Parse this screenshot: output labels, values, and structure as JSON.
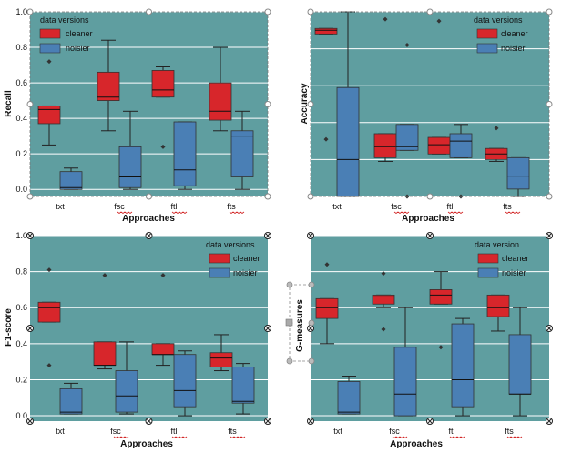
{
  "colors": {
    "plot_bg": "#5f9ea0",
    "cleaner": "#d7262b",
    "noisier": "#4a7fb5",
    "median": "#111111",
    "grid": "#ffffff",
    "handle": "#888888"
  },
  "chart_data": [
    {
      "type": "box",
      "ylabel": "Recall",
      "xlabel": "Approaches",
      "categories": [
        "txt",
        "fsc",
        "ftl",
        "fts"
      ],
      "ylim": [
        -0.04,
        1.0
      ],
      "yticks": [
        "0.0",
        "0.2",
        "0.4",
        "0.6",
        "0.8",
        "1.0"
      ],
      "legend": {
        "title": "data versions",
        "placement": "top-left",
        "labels": [
          "cleaner",
          "noisier"
        ]
      },
      "series": [
        {
          "name": "cleaner",
          "boxes": [
            {
              "whislo": 0.25,
              "q1": 0.37,
              "med": 0.45,
              "q3": 0.47,
              "whishi": 0.47,
              "fliers": [
                0.72
              ]
            },
            {
              "whislo": 0.33,
              "q1": 0.5,
              "med": 0.52,
              "q3": 0.66,
              "whishi": 0.84,
              "fliers": []
            },
            {
              "whislo": 0.52,
              "q1": 0.52,
              "med": 0.56,
              "q3": 0.67,
              "whishi": 0.69,
              "fliers": [
                0.24
              ]
            },
            {
              "whislo": 0.33,
              "q1": 0.39,
              "med": 0.44,
              "q3": 0.6,
              "whishi": 0.8,
              "fliers": []
            }
          ]
        },
        {
          "name": "noisier",
          "boxes": [
            {
              "whislo": 0.0,
              "q1": 0.0,
              "med": 0.01,
              "q3": 0.1,
              "whishi": 0.12,
              "fliers": []
            },
            {
              "whislo": 0.0,
              "q1": 0.01,
              "med": 0.07,
              "q3": 0.24,
              "whishi": 0.44,
              "fliers": []
            },
            {
              "whislo": 0.0,
              "q1": 0.02,
              "med": 0.11,
              "q3": 0.38,
              "whishi": 0.38,
              "fliers": []
            },
            {
              "whislo": 0.0,
              "q1": 0.07,
              "med": 0.3,
              "q3": 0.33,
              "whishi": 0.44,
              "fliers": []
            }
          ]
        }
      ]
    },
    {
      "type": "box",
      "ylabel": "Accuracy",
      "xlabel": "Approaches",
      "categories": [
        "txt",
        "fsc",
        "ftl",
        "fts"
      ],
      "ylim": [
        0.0,
        1.0
      ],
      "yticks": [],
      "legend": {
        "title": "data versions",
        "placement": "top-right",
        "labels": [
          "cleaner",
          "noisier"
        ]
      },
      "series": [
        {
          "name": "cleaner",
          "boxes": [
            {
              "whislo": 0.88,
              "q1": 0.88,
              "med": 0.9,
              "q3": 0.91,
              "whishi": 0.91,
              "fliers": [
                0.31
              ]
            },
            {
              "whislo": 0.19,
              "q1": 0.21,
              "med": 0.27,
              "q3": 0.34,
              "whishi": 0.34,
              "fliers": [
                0.96
              ]
            },
            {
              "whislo": 0.23,
              "q1": 0.23,
              "med": 0.28,
              "q3": 0.32,
              "whishi": 0.32,
              "fliers": [
                0.95
              ]
            },
            {
              "whislo": 0.19,
              "q1": 0.2,
              "med": 0.23,
              "q3": 0.26,
              "whishi": 0.26,
              "fliers": [
                0.37
              ]
            }
          ]
        },
        {
          "name": "noisier",
          "boxes": [
            {
              "whislo": 0.0,
              "q1": 0.0,
              "med": 0.2,
              "q3": 0.59,
              "whishi": 1.0,
              "fliers": []
            },
            {
              "whislo": 0.25,
              "q1": 0.25,
              "med": 0.27,
              "q3": 0.39,
              "whishi": 0.39,
              "fliers": [
                0.0,
                0.82
              ]
            },
            {
              "whislo": 0.21,
              "q1": 0.21,
              "med": 0.3,
              "q3": 0.34,
              "whishi": 0.39,
              "fliers": [
                0.0
              ]
            },
            {
              "whislo": 0.0,
              "q1": 0.04,
              "med": 0.11,
              "q3": 0.21,
              "whishi": 0.21,
              "fliers": []
            }
          ]
        }
      ]
    },
    {
      "type": "box",
      "ylabel": "F1-score",
      "xlabel": "Approaches",
      "categories": [
        "txt",
        "fsc",
        "ftl",
        "fts"
      ],
      "ylim": [
        -0.03,
        1.0
      ],
      "yticks": [
        "0.0",
        "0.2",
        "0.4",
        "0.6",
        "0.8",
        "1.0"
      ],
      "legend": {
        "title": "data versions",
        "placement": "top-right",
        "labels": [
          "cleaner",
          "noisier"
        ]
      },
      "series": [
        {
          "name": "cleaner",
          "boxes": [
            {
              "whislo": 0.52,
              "q1": 0.52,
              "med": 0.6,
              "q3": 0.63,
              "whishi": 0.63,
              "fliers": [
                0.81,
                0.28
              ]
            },
            {
              "whislo": 0.26,
              "q1": 0.28,
              "med": 0.28,
              "q3": 0.41,
              "whishi": 0.41,
              "fliers": [
                0.78
              ]
            },
            {
              "whislo": 0.28,
              "q1": 0.34,
              "med": 0.34,
              "q3": 0.4,
              "whishi": 0.4,
              "fliers": [
                0.78
              ]
            },
            {
              "whislo": 0.25,
              "q1": 0.27,
              "med": 0.32,
              "q3": 0.35,
              "whishi": 0.45,
              "fliers": []
            }
          ]
        },
        {
          "name": "noisier",
          "boxes": [
            {
              "whislo": 0.01,
              "q1": 0.01,
              "med": 0.02,
              "q3": 0.15,
              "whishi": 0.18,
              "fliers": []
            },
            {
              "whislo": 0.01,
              "q1": 0.02,
              "med": 0.11,
              "q3": 0.25,
              "whishi": 0.41,
              "fliers": []
            },
            {
              "whislo": 0.0,
              "q1": 0.05,
              "med": 0.14,
              "q3": 0.34,
              "whishi": 0.36,
              "fliers": []
            },
            {
              "whislo": 0.01,
              "q1": 0.07,
              "med": 0.08,
              "q3": 0.27,
              "whishi": 0.29,
              "fliers": []
            }
          ]
        }
      ]
    },
    {
      "type": "box",
      "ylabel": "G-measures",
      "xlabel": "Approaches",
      "categories": [
        "txt",
        "fsc",
        "ftl",
        "fts"
      ],
      "ylim": [
        -0.03,
        1.0
      ],
      "yticks": [],
      "legend": {
        "title": "data version",
        "placement": "top-right",
        "labels": [
          "cleaner",
          "noisier"
        ]
      },
      "series": [
        {
          "name": "cleaner",
          "boxes": [
            {
              "whislo": 0.4,
              "q1": 0.54,
              "med": 0.6,
              "q3": 0.65,
              "whishi": 0.65,
              "fliers": [
                0.84
              ]
            },
            {
              "whislo": 0.6,
              "q1": 0.62,
              "med": 0.66,
              "q3": 0.67,
              "whishi": 0.67,
              "fliers": [
                0.79,
                0.48
              ]
            },
            {
              "whislo": 0.62,
              "q1": 0.62,
              "med": 0.67,
              "q3": 0.7,
              "whishi": 0.8,
              "fliers": [
                0.38
              ]
            },
            {
              "whislo": 0.47,
              "q1": 0.55,
              "med": 0.6,
              "q3": 0.67,
              "whishi": 0.67,
              "fliers": []
            }
          ]
        },
        {
          "name": "noisier",
          "boxes": [
            {
              "whislo": 0.01,
              "q1": 0.01,
              "med": 0.02,
              "q3": 0.19,
              "whishi": 0.22,
              "fliers": []
            },
            {
              "whislo": 0.0,
              "q1": 0.0,
              "med": 0.12,
              "q3": 0.38,
              "whishi": 0.6,
              "fliers": []
            },
            {
              "whislo": 0.0,
              "q1": 0.05,
              "med": 0.2,
              "q3": 0.51,
              "whishi": 0.54,
              "fliers": []
            },
            {
              "whislo": 0.0,
              "q1": 0.12,
              "med": 0.12,
              "q3": 0.45,
              "whishi": 0.6,
              "fliers": []
            }
          ]
        }
      ]
    }
  ]
}
